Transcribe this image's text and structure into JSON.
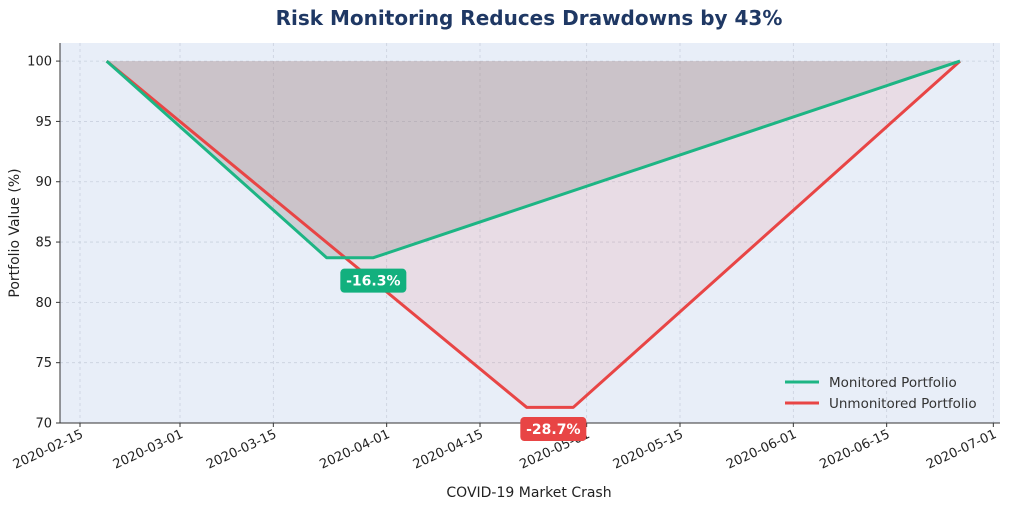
{
  "chart_data": {
    "type": "line",
    "title": "Risk Monitoring Reduces Drawdowns by 43%",
    "xlabel": "COVID-19 Market Crash",
    "ylabel": "Portfolio Value (%)",
    "xlim": [
      "2020-02-12",
      "2020-07-02"
    ],
    "ylim": [
      70,
      101.5
    ],
    "y_ticks": [
      70,
      75,
      80,
      85,
      90,
      95,
      100
    ],
    "x_ticks": [
      "2020-02-15",
      "2020-03-01",
      "2020-03-15",
      "2020-04-01",
      "2020-04-15",
      "2020-05-01",
      "2020-05-15",
      "2020-06-01",
      "2020-06-15",
      "2020-07-01"
    ],
    "grid": true,
    "legend_position": "bottom-right",
    "baseline": 100,
    "series": [
      {
        "name": "Monitored Portfolio",
        "color": "#1db584",
        "x": [
          "2020-02-19",
          "2020-03-23",
          "2020-03-30",
          "2020-06-26"
        ],
        "y": [
          100,
          83.7,
          83.7,
          100
        ]
      },
      {
        "name": "Unmonitored Portfolio",
        "color": "#e84545",
        "x": [
          "2020-02-19",
          "2020-04-22",
          "2020-04-29",
          "2020-06-26"
        ],
        "y": [
          100,
          71.3,
          71.3,
          100
        ]
      }
    ],
    "annotations": [
      {
        "text": "-16.3%",
        "x": "2020-03-30",
        "y": 81.8,
        "color": "#12b07e"
      },
      {
        "text": "-28.7%",
        "x": "2020-04-26",
        "y": 69.5,
        "color": "#e84545"
      }
    ]
  }
}
